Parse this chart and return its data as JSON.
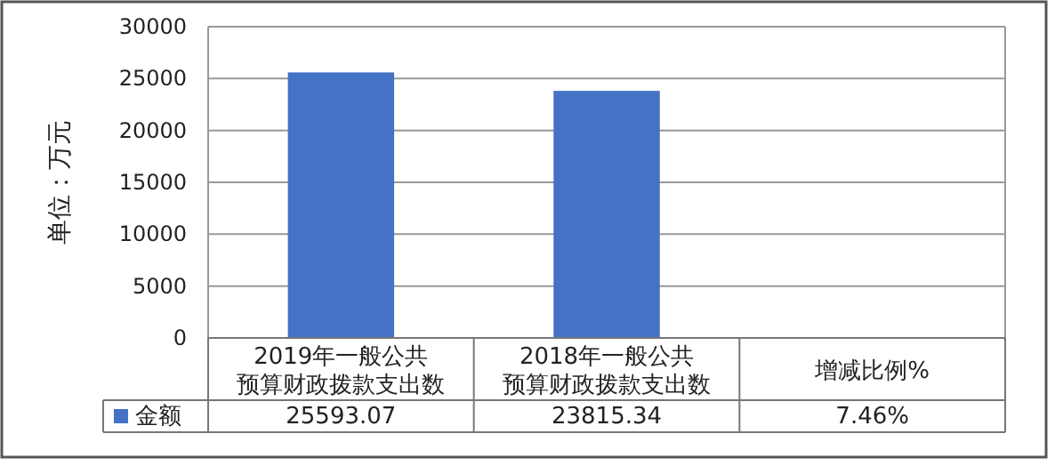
{
  "chart_data": {
    "type": "bar",
    "ylabel": "单位：万元",
    "categories": [
      "2019年一般公共预算财政拨款支出数",
      "2018年一般公共预算财政拨款支出数",
      "增减比例%"
    ],
    "series": [
      {
        "name": "金额",
        "color": "#4472c4",
        "values": [
          25593.07,
          23815.34,
          7.46
        ],
        "value_labels": [
          "25593.07",
          "23815.34",
          "7.46%"
        ]
      }
    ],
    "ylim": [
      0,
      30000
    ],
    "yticks": [
      0,
      5000,
      10000,
      15000,
      20000,
      25000,
      30000
    ],
    "grid": "y",
    "legend": "bottom"
  }
}
